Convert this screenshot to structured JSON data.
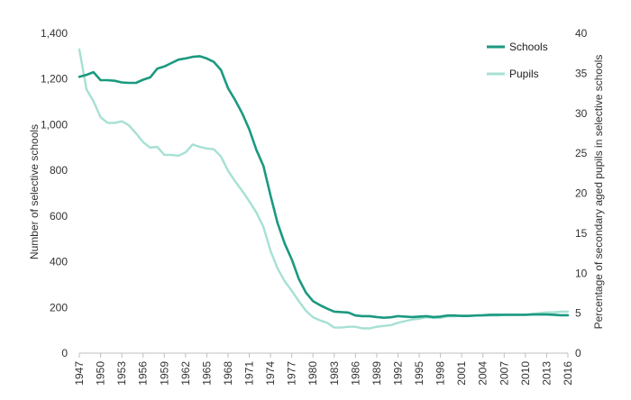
{
  "chart_data": {
    "type": "line",
    "title": "",
    "xlabel": "",
    "ylabel": "Number of selective schools",
    "y2label": "Percentage of secondary aged pupils in selective schools",
    "grid": false,
    "legend_position": "top-right",
    "xlim": [
      1947,
      2016
    ],
    "ylim": [
      0,
      1400
    ],
    "y2lim": [
      0,
      40
    ],
    "x_ticks": [
      1947,
      1950,
      1953,
      1956,
      1959,
      1962,
      1965,
      1968,
      1971,
      1974,
      1977,
      1980,
      1983,
      1986,
      1989,
      1992,
      1995,
      1998,
      2001,
      2004,
      2007,
      2010,
      2013,
      2016
    ],
    "y_ticks": [
      0,
      200,
      400,
      600,
      800,
      1000,
      1200,
      1400
    ],
    "y_tick_labels": [
      "0",
      "200",
      "400",
      "600",
      "800",
      "1,000",
      "1,200",
      "1,400"
    ],
    "y2_ticks": [
      0,
      5,
      10,
      15,
      20,
      25,
      30,
      35,
      40
    ],
    "series": [
      {
        "name": "Schools",
        "axis": "left",
        "color": "#1b9980",
        "x": [
          1947,
          1948,
          1949,
          1950,
          1951,
          1952,
          1953,
          1954,
          1955,
          1956,
          1957,
          1958,
          1959,
          1960,
          1961,
          1962,
          1963,
          1964,
          1965,
          1966,
          1967,
          1968,
          1969,
          1970,
          1971,
          1972,
          1973,
          1974,
          1975,
          1976,
          1977,
          1978,
          1979,
          1980,
          1981,
          1982,
          1983,
          1984,
          1985,
          1986,
          1987,
          1988,
          1989,
          1990,
          1991,
          1992,
          1993,
          1994,
          1995,
          1996,
          1997,
          1998,
          1999,
          2000,
          2001,
          2002,
          2003,
          2004,
          2005,
          2006,
          2007,
          2008,
          2009,
          2010,
          2011,
          2012,
          2013,
          2014,
          2015,
          2016
        ],
        "values": [
          1210,
          1218,
          1230,
          1195,
          1195,
          1192,
          1185,
          1183,
          1183,
          1197,
          1207,
          1245,
          1255,
          1270,
          1285,
          1290,
          1297,
          1300,
          1290,
          1275,
          1240,
          1160,
          1108,
          1050,
          980,
          890,
          820,
          690,
          570,
          480,
          410,
          325,
          265,
          228,
          210,
          195,
          182,
          180,
          178,
          165,
          162,
          162,
          158,
          155,
          157,
          162,
          160,
          158,
          160,
          162,
          158,
          160,
          165,
          165,
          163,
          163,
          165,
          166,
          168,
          168,
          168,
          168,
          168,
          168,
          169,
          169,
          169,
          168,
          166,
          166
        ]
      },
      {
        "name": "Pupils",
        "axis": "right",
        "color": "#a6e0d4",
        "x": [
          1947,
          1948,
          1949,
          1950,
          1951,
          1952,
          1953,
          1954,
          1955,
          1956,
          1957,
          1958,
          1959,
          1960,
          1961,
          1962,
          1963,
          1964,
          1965,
          1966,
          1967,
          1968,
          1969,
          1970,
          1971,
          1972,
          1973,
          1974,
          1975,
          1976,
          1977,
          1978,
          1979,
          1980,
          1981,
          1982,
          1983,
          1984,
          1985,
          1986,
          1987,
          1988,
          1989,
          1990,
          1991,
          1992,
          1993,
          1994,
          1995,
          1996,
          1997,
          1998,
          1999,
          2000,
          2001,
          2002,
          2003,
          2004,
          2005,
          2006,
          2007,
          2008,
          2009,
          2010,
          2011,
          2012,
          2013,
          2014,
          2015,
          2016
        ],
        "values": [
          38,
          33,
          31.5,
          29.5,
          28.8,
          28.8,
          29,
          28.5,
          27.5,
          26.4,
          25.7,
          25.8,
          24.8,
          24.8,
          24.7,
          25.1,
          26.1,
          25.8,
          25.6,
          25.5,
          24.6,
          22.8,
          21.5,
          20.3,
          19,
          17.6,
          15.8,
          12.8,
          10.6,
          9,
          7.8,
          6.5,
          5.3,
          4.5,
          4.1,
          3.8,
          3.2,
          3.2,
          3.3,
          3.3,
          3.1,
          3.1,
          3.3,
          3.4,
          3.5,
          3.8,
          4.0,
          4.2,
          4.3,
          4.5,
          4.4,
          4.4,
          4.6,
          4.6,
          4.7,
          4.7,
          4.7,
          4.7,
          4.7,
          4.7,
          4.8,
          4.8,
          4.8,
          4.8,
          4.9,
          5.0,
          5.1,
          5.1,
          5.2,
          5.2
        ]
      }
    ]
  }
}
